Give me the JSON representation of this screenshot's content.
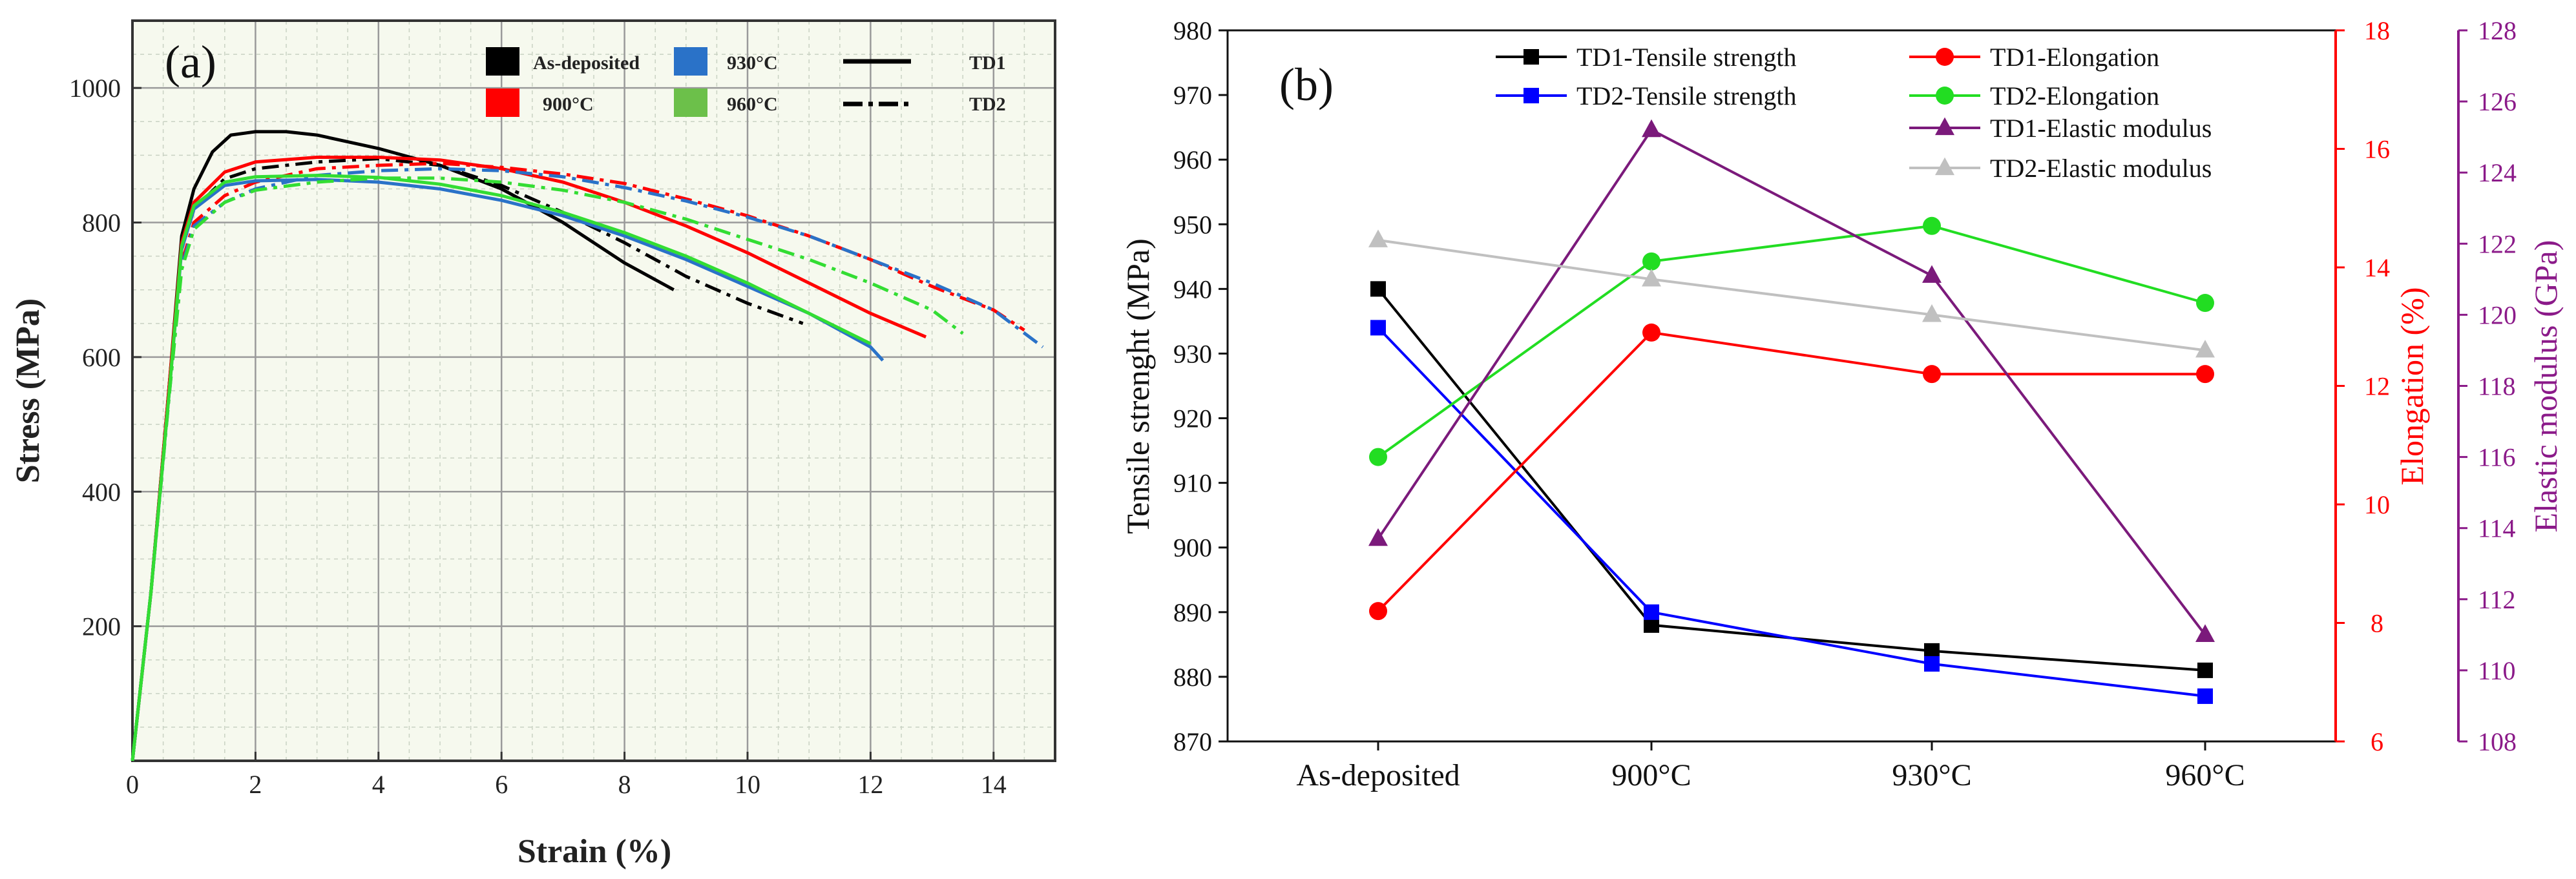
{
  "chart_data": [
    {
      "panel_label": "(a)",
      "type": "line",
      "xlabel": "Strain (%)",
      "ylabel": "Stress (MPa)",
      "xlim": [
        0,
        15
      ],
      "ylim": [
        0,
        1100
      ],
      "xticks": [
        0,
        2,
        4,
        6,
        8,
        10,
        12,
        14
      ],
      "yticks": [
        200,
        400,
        600,
        800,
        1000
      ],
      "grid": true,
      "legend_position": "top",
      "legend": {
        "colors": [
          {
            "label": "As-deposited",
            "color": "#000000"
          },
          {
            "label": "900°C",
            "color": "#ff0000"
          },
          {
            "label": "930°C",
            "color": "#2a72c8"
          },
          {
            "label": "960°C",
            "color": "#6cc04a"
          }
        ],
        "styles": [
          {
            "label": "TD1",
            "dash": "solid"
          },
          {
            "label": "TD2",
            "dash": "dashdot"
          }
        ]
      },
      "series": [
        {
          "name": "As-deposited TD1",
          "color": "#000000",
          "dash": "solid",
          "points": [
            [
              0,
              0
            ],
            [
              0.3,
              250
            ],
            [
              0.6,
              560
            ],
            [
              0.8,
              780
            ],
            [
              1.0,
              850
            ],
            [
              1.3,
              905
            ],
            [
              1.6,
              930
            ],
            [
              2,
              935
            ],
            [
              2.5,
              935
            ],
            [
              3,
              930
            ],
            [
              4,
              910
            ],
            [
              5,
              885
            ],
            [
              6,
              850
            ],
            [
              7,
              800
            ],
            [
              8,
              740
            ],
            [
              8.8,
              700
            ]
          ]
        },
        {
          "name": "As-deposited TD2",
          "color": "#000000",
          "dash": "dashdot",
          "points": [
            [
              0,
              0
            ],
            [
              0.3,
              250
            ],
            [
              0.6,
              560
            ],
            [
              0.8,
              760
            ],
            [
              1.0,
              820
            ],
            [
              1.5,
              865
            ],
            [
              2,
              880
            ],
            [
              3,
              890
            ],
            [
              4,
              895
            ],
            [
              5,
              885
            ],
            [
              6,
              855
            ],
            [
              7,
              815
            ],
            [
              8,
              770
            ],
            [
              9,
              720
            ],
            [
              10,
              680
            ],
            [
              10.9,
              650
            ]
          ]
        },
        {
          "name": "900°C TD1",
          "color": "#ff0000",
          "dash": "solid",
          "points": [
            [
              0,
              0
            ],
            [
              0.3,
              250
            ],
            [
              0.6,
              560
            ],
            [
              0.8,
              770
            ],
            [
              1.0,
              830
            ],
            [
              1.5,
              875
            ],
            [
              2,
              890
            ],
            [
              3,
              897
            ],
            [
              4,
              897
            ],
            [
              5,
              893
            ],
            [
              6,
              880
            ],
            [
              7,
              860
            ],
            [
              8,
              830
            ],
            [
              9,
              795
            ],
            [
              10,
              755
            ],
            [
              11,
              710
            ],
            [
              12,
              665
            ],
            [
              12.9,
              630
            ]
          ]
        },
        {
          "name": "900°C TD2",
          "color": "#ff0000",
          "dash": "dashdot",
          "points": [
            [
              0,
              0
            ],
            [
              0.3,
              250
            ],
            [
              0.6,
              550
            ],
            [
              0.8,
              740
            ],
            [
              1.0,
              800
            ],
            [
              1.5,
              840
            ],
            [
              2,
              860
            ],
            [
              3,
              880
            ],
            [
              4,
              885
            ],
            [
              5,
              888
            ],
            [
              6,
              882
            ],
            [
              7,
              872
            ],
            [
              8,
              858
            ],
            [
              9,
              835
            ],
            [
              10,
              810
            ],
            [
              11,
              780
            ],
            [
              12,
              745
            ],
            [
              13,
              705
            ],
            [
              14,
              670
            ],
            [
              14.5,
              640
            ]
          ]
        },
        {
          "name": "930°C TD1",
          "color": "#2a72c8",
          "dash": "solid",
          "points": [
            [
              0,
              0
            ],
            [
              0.3,
              250
            ],
            [
              0.6,
              550
            ],
            [
              0.8,
              760
            ],
            [
              1.0,
              820
            ],
            [
              1.5,
              855
            ],
            [
              2,
              862
            ],
            [
              3,
              864
            ],
            [
              4,
              860
            ],
            [
              5,
              850
            ],
            [
              6,
              833
            ],
            [
              7,
              810
            ],
            [
              8,
              780
            ],
            [
              9,
              745
            ],
            [
              10,
              705
            ],
            [
              11,
              665
            ],
            [
              12,
              615
            ],
            [
              12.2,
              595
            ]
          ]
        },
        {
          "name": "930°C TD2",
          "color": "#2a72c8",
          "dash": "dashdot",
          "points": [
            [
              0,
              0
            ],
            [
              0.3,
              250
            ],
            [
              0.6,
              545
            ],
            [
              0.8,
              735
            ],
            [
              1.0,
              795
            ],
            [
              1.5,
              830
            ],
            [
              2,
              850
            ],
            [
              3,
              870
            ],
            [
              4,
              877
            ],
            [
              5,
              880
            ],
            [
              6,
              877
            ],
            [
              7,
              868
            ],
            [
              8,
              852
            ],
            [
              9,
              832
            ],
            [
              10,
              808
            ],
            [
              11,
              780
            ],
            [
              12,
              745
            ],
            [
              13,
              710
            ],
            [
              14,
              670
            ],
            [
              14.8,
              615
            ]
          ]
        },
        {
          "name": "960°C TD1",
          "color": "#33dd33",
          "dash": "solid",
          "points": [
            [
              0,
              0
            ],
            [
              0.3,
              250
            ],
            [
              0.6,
              550
            ],
            [
              0.8,
              765
            ],
            [
              1.0,
              825
            ],
            [
              1.5,
              860
            ],
            [
              2,
              868
            ],
            [
              3,
              870
            ],
            [
              4,
              867
            ],
            [
              5,
              857
            ],
            [
              6,
              840
            ],
            [
              7,
              815
            ],
            [
              8,
              785
            ],
            [
              9,
              750
            ],
            [
              10,
              710
            ],
            [
              11,
              665
            ],
            [
              12,
              620
            ]
          ]
        },
        {
          "name": "960°C TD2",
          "color": "#33dd33",
          "dash": "dashdot",
          "points": [
            [
              0,
              0
            ],
            [
              0.3,
              250
            ],
            [
              0.6,
              545
            ],
            [
              0.8,
              730
            ],
            [
              1.0,
              790
            ],
            [
              1.5,
              830
            ],
            [
              2,
              848
            ],
            [
              3,
              860
            ],
            [
              4,
              866
            ],
            [
              5,
              866
            ],
            [
              6,
              860
            ],
            [
              7,
              848
            ],
            [
              8,
              830
            ],
            [
              9,
              805
            ],
            [
              10,
              775
            ],
            [
              11,
              745
            ],
            [
              12,
              710
            ],
            [
              13,
              670
            ],
            [
              13.5,
              635
            ]
          ]
        }
      ]
    },
    {
      "panel_label": "(b)",
      "type": "line",
      "categories": [
        "As-deposited",
        "900°C",
        "930°C",
        "960°C"
      ],
      "legend_position": "top",
      "axes": {
        "left": {
          "label": "Tensile strenght (MPa)",
          "lim": [
            870,
            980
          ],
          "ticks": [
            870,
            880,
            890,
            900,
            910,
            920,
            930,
            940,
            950,
            960,
            970,
            980
          ],
          "color": "#000000"
        },
        "right1": {
          "label": "Elongation (%)",
          "lim": [
            6,
            18
          ],
          "ticks": [
            6,
            8,
            10,
            12,
            14,
            16,
            18
          ],
          "color": "#ff0000"
        },
        "right2": {
          "label": "Elastic modulus (GPa)",
          "lim": [
            108,
            128
          ],
          "ticks": [
            108,
            110,
            112,
            114,
            116,
            118,
            120,
            122,
            124,
            126,
            128
          ],
          "color": "#8b1a89"
        }
      },
      "series": [
        {
          "name": "TD1-Tensile strength",
          "axis": "left",
          "color": "#000000",
          "marker": "square",
          "values": [
            940,
            888,
            884,
            881
          ]
        },
        {
          "name": "TD2-Tensile strength",
          "axis": "left",
          "color": "#0000ff",
          "marker": "square",
          "values": [
            934,
            890,
            882,
            877
          ]
        },
        {
          "name": "TD1-Elongation",
          "axis": "right1",
          "color": "#ff0000",
          "marker": "circle",
          "values": [
            8.2,
            12.9,
            12.2,
            12.2
          ]
        },
        {
          "name": "TD2-Elongation",
          "axis": "right1",
          "color": "#22dd22",
          "marker": "circle",
          "values": [
            10.8,
            14.1,
            14.7,
            13.4
          ]
        },
        {
          "name": "TD1-Elastic modulus",
          "axis": "right2",
          "color": "#7b1a7b",
          "marker": "triangle",
          "values": [
            113.7,
            125.2,
            121.1,
            111.0
          ]
        },
        {
          "name": "TD2-Elastic modulus",
          "axis": "right2",
          "color": "#c0c0c0",
          "marker": "triangle",
          "values": [
            122.1,
            121.0,
            120.0,
            119.0
          ]
        }
      ]
    }
  ]
}
